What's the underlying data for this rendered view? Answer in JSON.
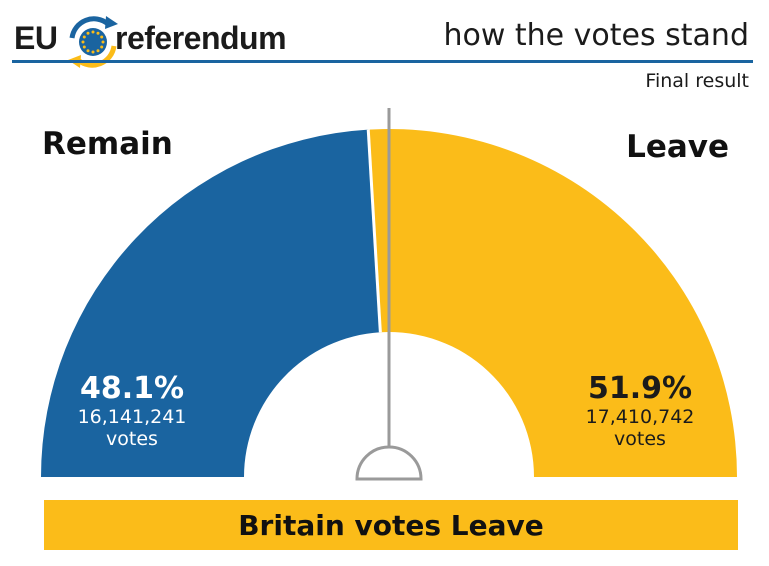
{
  "header": {
    "logo_left": "EU",
    "logo_right": "referendum",
    "headline": "how the votes stand",
    "subhead": "Final result"
  },
  "colors": {
    "remain": "#1a64a0",
    "leave": "#fbbc19",
    "needle": "#9a9a9a"
  },
  "chart_data": {
    "type": "pie",
    "variant": "semicircle-donut",
    "categories": [
      "Remain",
      "Leave"
    ],
    "values": [
      48.1,
      51.9
    ],
    "votes": [
      "16,141,241",
      "17,410,742"
    ],
    "units": "votes",
    "threshold": 50,
    "result": "Britain votes Leave"
  },
  "remain": {
    "label": "Remain",
    "percent": "48.1%",
    "votes": "16,141,241",
    "unit": "votes"
  },
  "leave": {
    "label": "Leave",
    "percent": "51.9%",
    "votes": "17,410,742",
    "unit": "votes"
  },
  "banner": {
    "text": "Britain votes Leave"
  }
}
